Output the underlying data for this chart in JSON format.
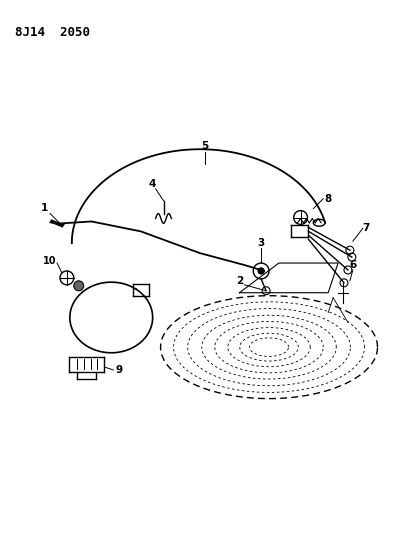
{
  "title": "8J14  2050",
  "bg_color": "#ffffff",
  "line_color": "#000000",
  "fig_width": 4.0,
  "fig_height": 5.33,
  "dpi": 100
}
